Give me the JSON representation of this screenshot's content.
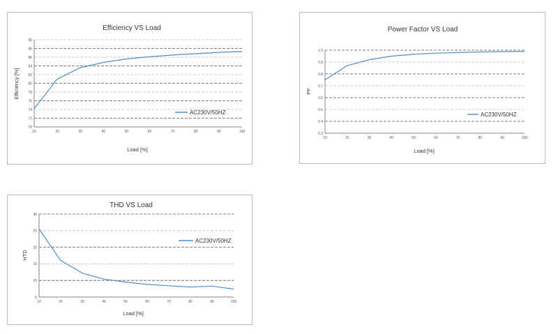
{
  "chart_data": [
    {
      "id": "eff",
      "type": "line",
      "title": "Efficiency VS Load",
      "xlabel": "Load [%]",
      "ylabel": "Efficiency [%]",
      "xlim": [
        10,
        100
      ],
      "ylim": [
        70,
        90
      ],
      "xticks": [
        10,
        20,
        30,
        40,
        50,
        60,
        70,
        80,
        90,
        100
      ],
      "yticks": [
        70,
        72,
        74,
        76,
        78,
        80,
        82,
        84,
        86,
        88,
        90
      ],
      "grid": true,
      "legend": "bottom-right",
      "series": [
        {
          "name": "AC230V/50HZ",
          "color": "#4a8fcb",
          "x": [
            10,
            20,
            30,
            40,
            50,
            60,
            70,
            80,
            90,
            100
          ],
          "y": [
            74.2,
            81.0,
            83.6,
            84.8,
            85.6,
            86.1,
            86.5,
            86.8,
            87.1,
            87.3
          ]
        }
      ]
    },
    {
      "id": "pf",
      "type": "line",
      "title": "Power Factor VS Load",
      "xlabel": "Load [%]",
      "ylabel": "PF",
      "xlim": [
        10,
        100
      ],
      "ylim": [
        0.3,
        1.0
      ],
      "xticks": [
        10,
        20,
        30,
        40,
        50,
        60,
        70,
        80,
        90,
        100
      ],
      "yticks": [
        0.3,
        0.4,
        0.5,
        0.6,
        0.7,
        0.8,
        0.9,
        1.0
      ],
      "ytick_format": 1,
      "grid": true,
      "legend": "bottom-right",
      "series": [
        {
          "name": "AC230V/50HZ",
          "color": "#4a8fcb",
          "x": [
            10,
            20,
            30,
            40,
            50,
            60,
            70,
            80,
            90,
            100
          ],
          "y": [
            0.75,
            0.87,
            0.92,
            0.95,
            0.965,
            0.975,
            0.98,
            0.985,
            0.988,
            0.99
          ]
        }
      ]
    },
    {
      "id": "thd",
      "type": "line",
      "title": "THD VS Load",
      "xlabel": "Load [%]",
      "ylabel": "HTD",
      "xlim": [
        10,
        100
      ],
      "ylim": [
        5,
        30
      ],
      "xticks": [
        10,
        20,
        30,
        40,
        50,
        60,
        70,
        80,
        90,
        100
      ],
      "yticks": [
        5,
        10,
        15,
        20,
        25,
        30
      ],
      "grid": true,
      "legend": "top-right",
      "series": [
        {
          "name": "AC230V/50HZ",
          "color": "#4a8fcb",
          "x": [
            10,
            20,
            30,
            40,
            50,
            60,
            70,
            80,
            90,
            100
          ],
          "y": [
            25.5,
            16.0,
            12.2,
            10.4,
            9.5,
            8.8,
            8.4,
            8.0,
            8.3,
            7.4
          ]
        }
      ]
    }
  ]
}
